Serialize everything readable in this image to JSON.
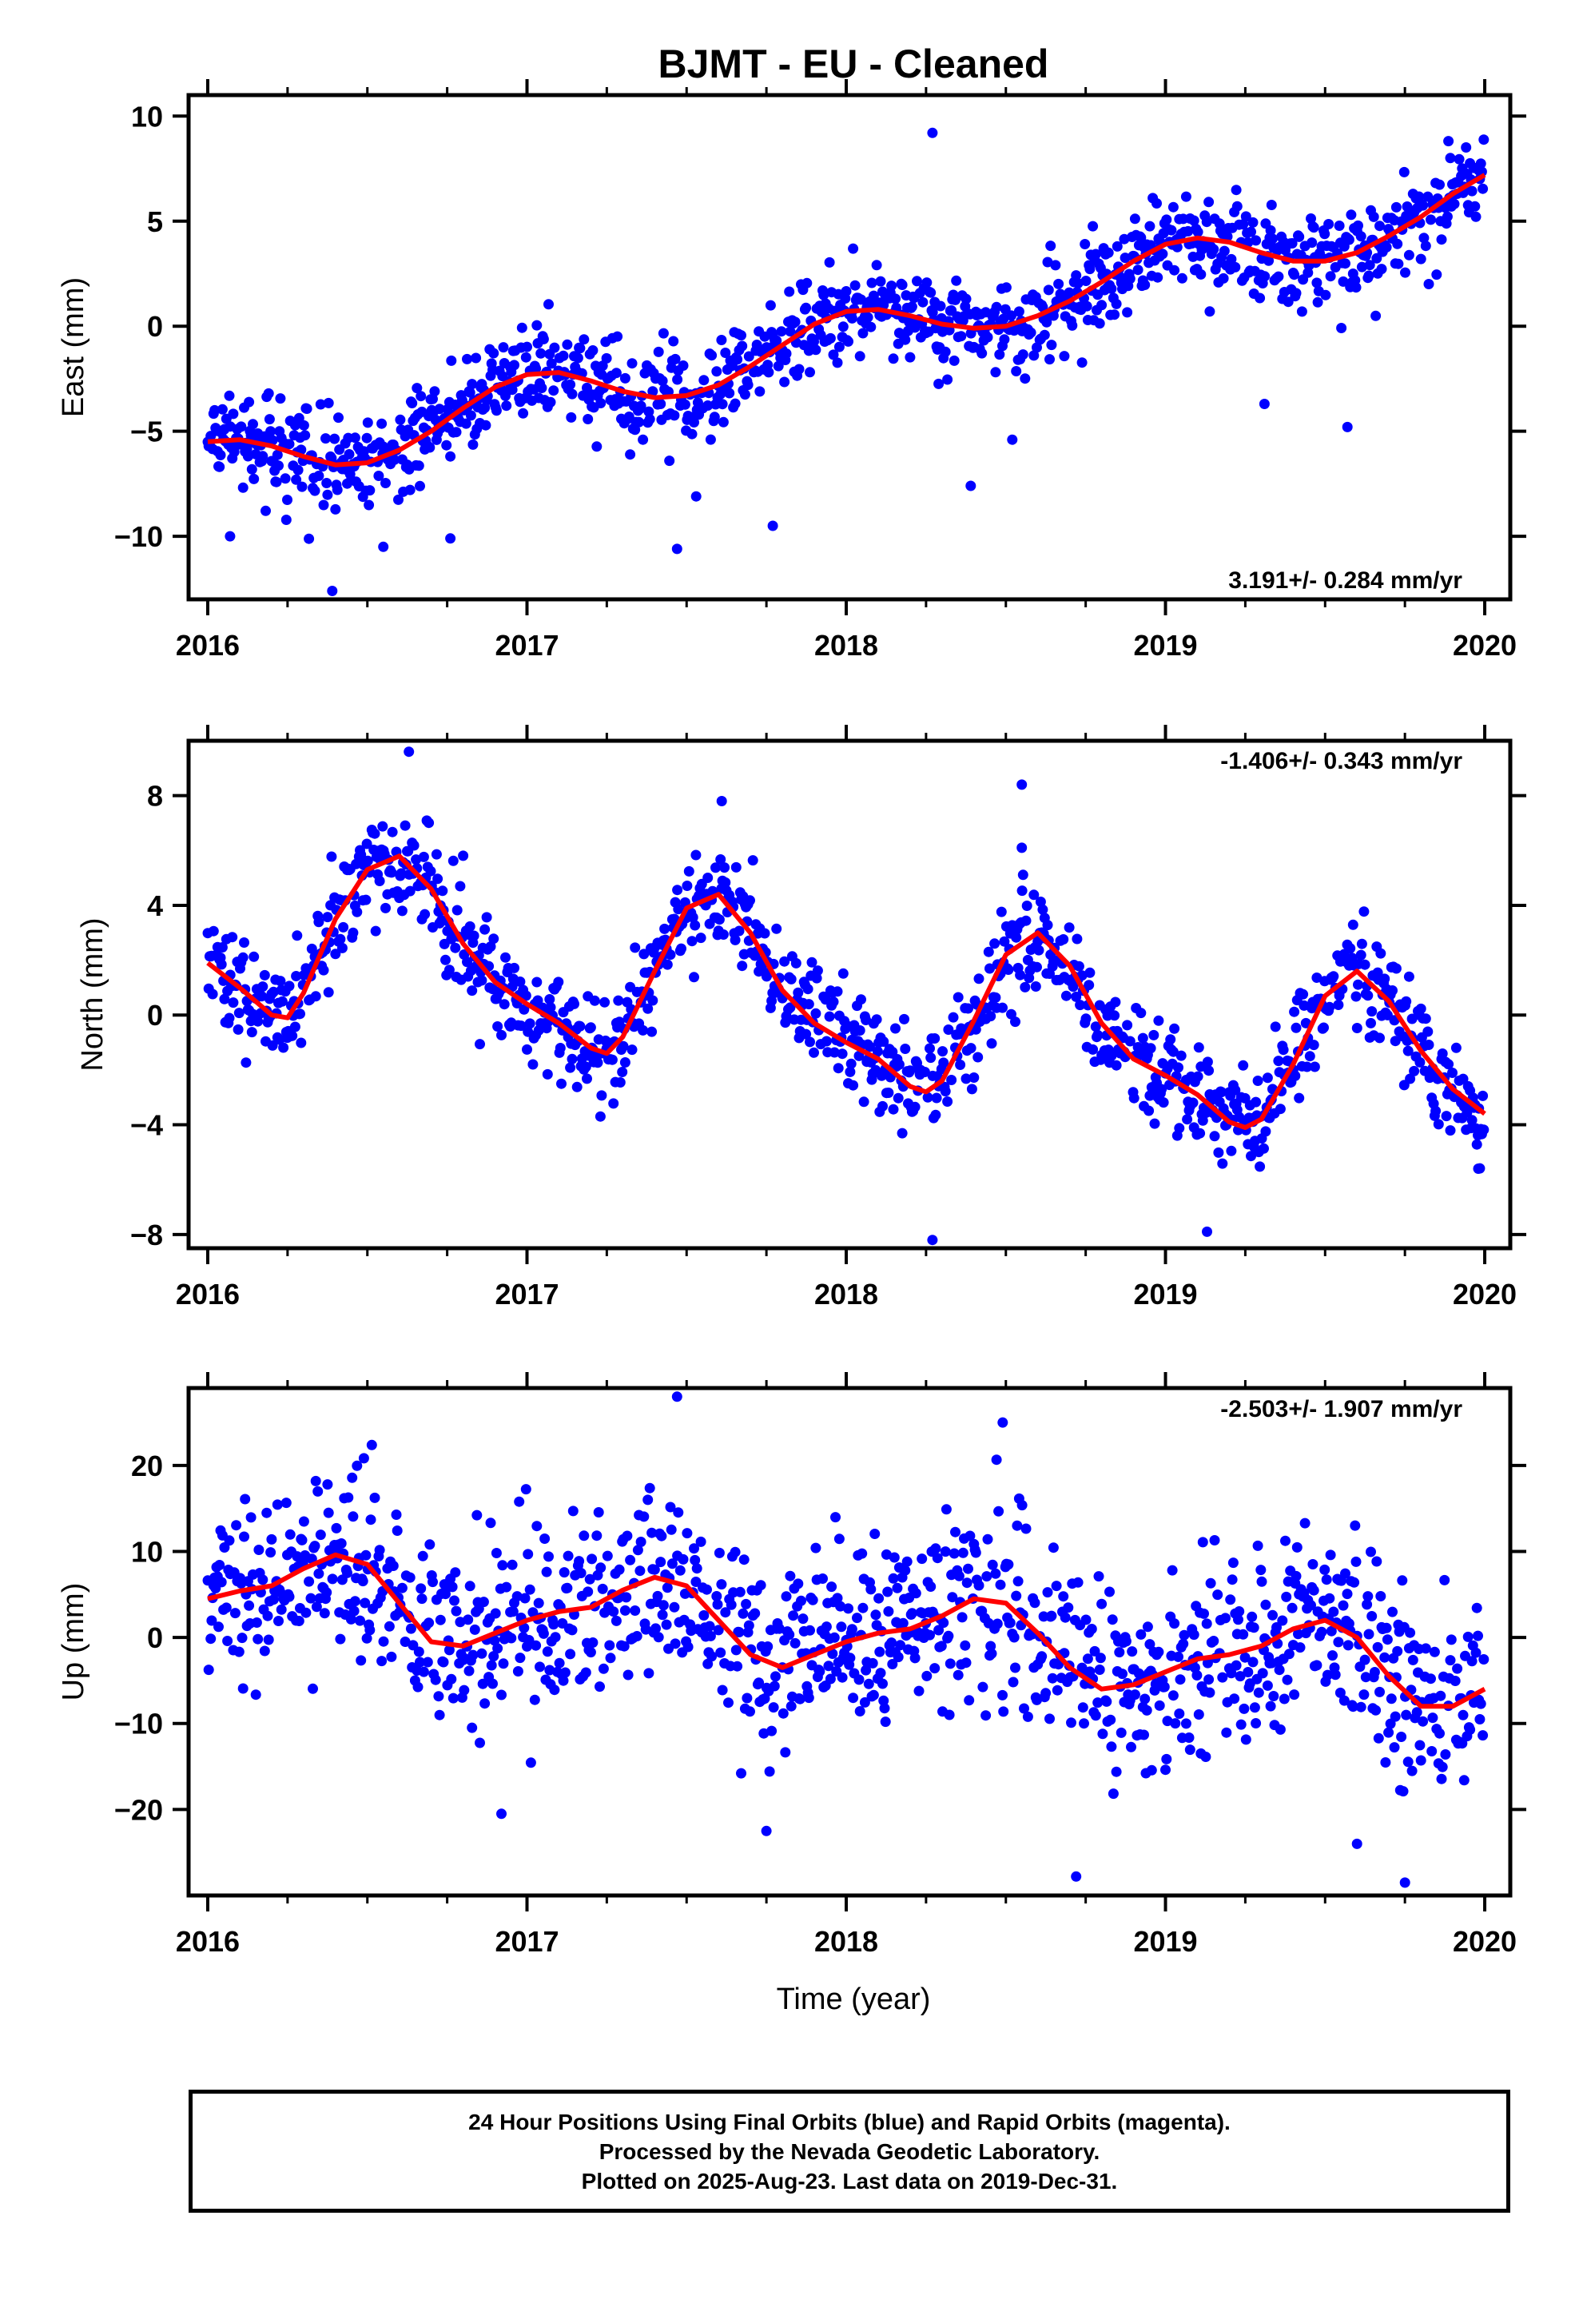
{
  "title": "BJMT  - EU - Cleaned",
  "colors": {
    "data_points": "#0000ff",
    "fit_line": "#ff0000",
    "frame": "#000000"
  },
  "chart_data": [
    {
      "type": "scatter",
      "component": "east",
      "ylabel": "East (mm)",
      "xlabel": "",
      "xlim": [
        2015.94,
        2020.08
      ],
      "ylim": [
        -13,
        11
      ],
      "x_ticks": [
        2016,
        2017,
        2018,
        2019,
        2020
      ],
      "x_tick_labels": [
        "2016",
        "2017",
        "2018",
        "2019",
        "2020"
      ],
      "y_ticks": [
        -10,
        -5,
        0,
        5,
        10
      ],
      "y_tick_labels": [
        "−10",
        "−5",
        "0",
        "5",
        "10"
      ],
      "rate_label": "3.191+/- 0.284 mm/yr",
      "rate_position": "bottom-right",
      "fit_curve": {
        "x": [
          2016.0,
          2016.1,
          2016.2,
          2016.3,
          2016.4,
          2016.5,
          2016.6,
          2016.7,
          2016.8,
          2016.9,
          2017.0,
          2017.1,
          2017.2,
          2017.3,
          2017.4,
          2017.5,
          2017.6,
          2017.7,
          2017.8,
          2017.9,
          2018.0,
          2018.1,
          2018.2,
          2018.3,
          2018.4,
          2018.5,
          2018.6,
          2018.7,
          2018.8,
          2018.9,
          2019.0,
          2019.1,
          2019.2,
          2019.3,
          2019.4,
          2019.5,
          2019.6,
          2019.7,
          2019.8,
          2019.9,
          2020.0
        ],
        "y": [
          -5.5,
          -5.4,
          -5.7,
          -6.2,
          -6.6,
          -6.5,
          -5.9,
          -5.0,
          -3.9,
          -2.9,
          -2.3,
          -2.2,
          -2.6,
          -3.1,
          -3.4,
          -3.3,
          -2.8,
          -1.9,
          -0.9,
          0.1,
          0.7,
          0.8,
          0.5,
          0.1,
          -0.1,
          0.0,
          0.5,
          1.2,
          2.1,
          3.1,
          3.9,
          4.2,
          4.0,
          3.5,
          3.1,
          3.1,
          3.5,
          4.3,
          5.2,
          6.3,
          7.2
        ]
      },
      "scatter": {
        "mode": "fit_plus_noise",
        "noise_sd": 1.1,
        "n_points": 1300,
        "outliers": [
          [
            2016.39,
            -12.6
          ],
          [
            2017.47,
            -10.6
          ],
          [
            2017.77,
            -9.5
          ],
          [
            2018.27,
            9.2
          ],
          [
            2018.39,
            -7.6
          ],
          [
            2016.55,
            -10.5
          ],
          [
            2019.31,
            -3.7
          ],
          [
            2019.57,
            -4.8
          ],
          [
            2016.07,
            -10.0
          ],
          [
            2018.52,
            -5.4
          ],
          [
            2017.53,
            -8.1
          ],
          [
            2016.76,
            -10.1
          ]
        ]
      }
    },
    {
      "type": "scatter",
      "component": "north",
      "ylabel": "North (mm)",
      "xlabel": "",
      "xlim": [
        2015.94,
        2020.08
      ],
      "ylim": [
        -8.5,
        10
      ],
      "x_ticks": [
        2016,
        2017,
        2018,
        2019,
        2020
      ],
      "x_tick_labels": [
        "2016",
        "2017",
        "2018",
        "2019",
        "2020"
      ],
      "y_ticks": [
        -8,
        -4,
        0,
        4,
        8
      ],
      "y_tick_labels": [
        "−8",
        "−4",
        "0",
        "4",
        "8"
      ],
      "rate_label": "-1.406+/- 0.343 mm/yr",
      "rate_position": "top-right",
      "fit_curve": {
        "x": [
          2016.0,
          2016.1,
          2016.2,
          2016.25,
          2016.3,
          2016.4,
          2016.5,
          2016.6,
          2016.7,
          2016.8,
          2016.9,
          2017.0,
          2017.1,
          2017.2,
          2017.25,
          2017.3,
          2017.4,
          2017.5,
          2017.6,
          2017.7,
          2017.8,
          2017.9,
          2018.0,
          2018.1,
          2018.2,
          2018.25,
          2018.3,
          2018.4,
          2018.5,
          2018.6,
          2018.7,
          2018.8,
          2018.9,
          2019.0,
          2019.1,
          2019.2,
          2019.25,
          2019.3,
          2019.4,
          2019.5,
          2019.6,
          2019.7,
          2019.8,
          2019.9,
          2020.0
        ],
        "y": [
          1.9,
          1.0,
          0.0,
          -0.1,
          0.8,
          3.5,
          5.3,
          5.8,
          4.6,
          2.6,
          1.2,
          0.4,
          -0.3,
          -1.2,
          -1.4,
          -0.8,
          1.6,
          3.9,
          4.4,
          3.0,
          0.9,
          -0.3,
          -1.0,
          -1.6,
          -2.6,
          -2.8,
          -2.4,
          -0.2,
          2.2,
          3.0,
          1.8,
          -0.3,
          -1.6,
          -2.2,
          -2.9,
          -3.9,
          -4.1,
          -3.8,
          -1.8,
          0.7,
          1.6,
          0.5,
          -1.3,
          -2.7,
          -3.6
        ]
      },
      "scatter": {
        "mode": "fit_plus_noise",
        "noise_sd": 0.95,
        "n_points": 1300,
        "outliers": [
          [
            2016.63,
            9.6
          ],
          [
            2018.55,
            8.4
          ],
          [
            2018.27,
            -8.2
          ],
          [
            2018.55,
            6.1
          ],
          [
            2019.13,
            -7.9
          ],
          [
            2017.23,
            -3.7
          ],
          [
            2019.98,
            -5.6
          ],
          [
            2017.61,
            7.8
          ]
        ]
      }
    },
    {
      "type": "scatter",
      "component": "up",
      "ylabel": "Up (mm)",
      "xlabel": "Time (year)",
      "xlim": [
        2015.94,
        2020.08
      ],
      "ylim": [
        -30,
        29
      ],
      "x_ticks": [
        2016,
        2017,
        2018,
        2019,
        2020
      ],
      "x_tick_labels": [
        "2016",
        "2017",
        "2018",
        "2019",
        "2020"
      ],
      "y_ticks": [
        -20,
        -10,
        0,
        10,
        20
      ],
      "y_tick_labels": [
        "−20",
        "−10",
        "0",
        "10",
        "20"
      ],
      "rate_label": "-2.503+/- 1.907 mm/yr",
      "rate_position": "top-right",
      "fit_curve": {
        "x": [
          2016.0,
          2016.1,
          2016.2,
          2016.3,
          2016.4,
          2016.5,
          2016.6,
          2016.7,
          2016.8,
          2016.9,
          2017.0,
          2017.1,
          2017.2,
          2017.3,
          2017.4,
          2017.5,
          2017.6,
          2017.7,
          2017.8,
          2017.9,
          2018.0,
          2018.1,
          2018.2,
          2018.3,
          2018.4,
          2018.5,
          2018.6,
          2018.7,
          2018.8,
          2018.9,
          2019.0,
          2019.1,
          2019.2,
          2019.3,
          2019.4,
          2019.5,
          2019.6,
          2019.7,
          2019.8,
          2019.9,
          2020.0
        ],
        "y": [
          4.5,
          5.4,
          6.0,
          8.0,
          9.6,
          8.5,
          4.0,
          -0.5,
          -1.0,
          0.5,
          2.0,
          3.0,
          3.5,
          5.5,
          7.0,
          6.0,
          2.0,
          -2.0,
          -3.5,
          -2.0,
          -0.5,
          0.5,
          1.0,
          2.5,
          4.5,
          4.0,
          0.5,
          -3.5,
          -6.0,
          -5.5,
          -4.0,
          -2.5,
          -2.0,
          -1.0,
          1.0,
          2.0,
          0.0,
          -4.5,
          -8.0,
          -8.0,
          -6.0
        ]
      },
      "scatter": {
        "mode": "fit_plus_noise",
        "noise_sd": 5.5,
        "n_points": 1300,
        "outliers": [
          [
            2017.47,
            28.0
          ],
          [
            2018.49,
            25.0
          ],
          [
            2018.72,
            -27.8
          ],
          [
            2019.75,
            -28.5
          ],
          [
            2017.75,
            -22.5
          ],
          [
            2016.92,
            -20.5
          ],
          [
            2019.6,
            -24.0
          ]
        ]
      }
    }
  ],
  "footer": {
    "line1": "24 Hour Positions Using Final Orbits (blue) and Rapid Orbits (magenta).",
    "line2": "Processed by the Nevada Geodetic Laboratory.",
    "line3": "Plotted on 2025-Aug-23. Last data on 2019-Dec-31."
  }
}
